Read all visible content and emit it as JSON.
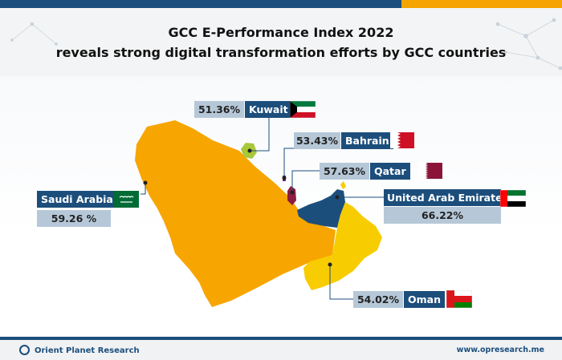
{
  "header": {
    "title_line1": "GCC E-Performance Index 2022",
    "title_line2": "reveals strong digital transformation efforts by GCC countries"
  },
  "countries": {
    "kuwait": {
      "name": "Kuwait",
      "score": "51.36%",
      "flag": "kuwait-flag-icon"
    },
    "bahrain": {
      "name": "Bahrain",
      "score": "53.43%",
      "flag": "bahrain-flag-icon"
    },
    "qatar": {
      "name": "Qatar",
      "score": "57.63%",
      "flag": "qatar-flag-icon"
    },
    "uae": {
      "name": "United Arab Emirates",
      "score": "66.22%",
      "flag": "uae-flag-icon"
    },
    "saudi": {
      "name": "Saudi Arabia",
      "score": "59.26 %",
      "flag": "saudi-flag-icon"
    },
    "oman": {
      "name": "Oman",
      "score": "54.02%",
      "flag": "oman-flag-icon"
    }
  },
  "colors": {
    "navy": "#1c4e7c",
    "orange": "#f5a400",
    "label_fill": "#b6c8d8",
    "saudi_fill": "#f7a500",
    "oman_fill": "#f7cc00",
    "kuwait_fill": "#a8c83a",
    "qatar_fill": "#8c1d40",
    "bahrain_fill": "#7c2a7a"
  },
  "footer": {
    "brand": "Orient Planet Research",
    "url": "www.opresearch.me"
  }
}
